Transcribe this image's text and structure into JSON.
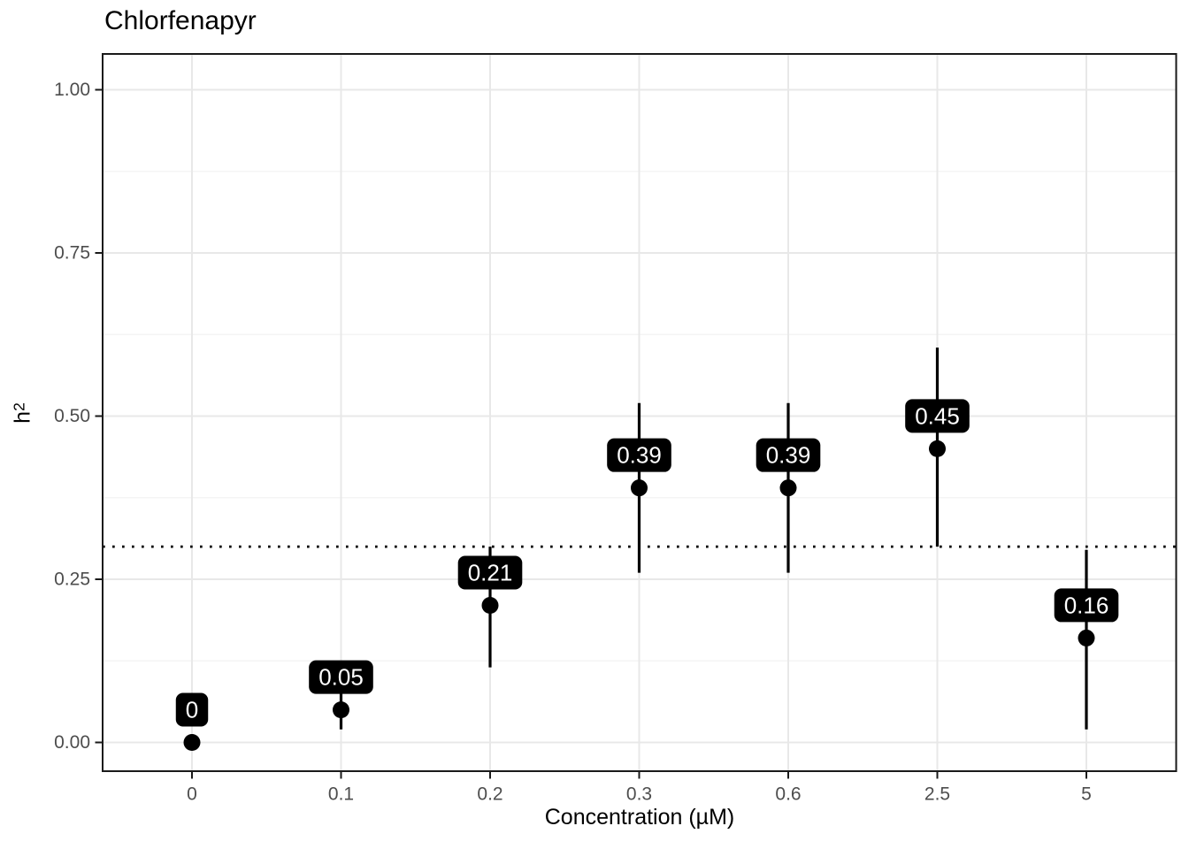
{
  "chart": {
    "title": "Chlorfenapyr",
    "x_axis_label": "Concentration (µM)",
    "y_axis_label_base": "h",
    "y_axis_label_sup": "2"
  },
  "chart_data": {
    "type": "pointrange",
    "title": "Chlorfenapyr",
    "xlabel": "Concentration (µM)",
    "ylabel": "h^2",
    "categories": [
      "0",
      "0.1",
      "0.2",
      "0.3",
      "0.6",
      "2.5",
      "5"
    ],
    "values": [
      0,
      0.05,
      0.21,
      0.39,
      0.39,
      0.45,
      0.16
    ],
    "point_labels": [
      "0",
      "0.05",
      "0.21",
      "0.39",
      "0.39",
      "0.45",
      "0.16"
    ],
    "error_low": [
      0,
      0.02,
      0.115,
      0.26,
      0.26,
      0.3,
      0.02
    ],
    "error_high": [
      0,
      0.08,
      0.3,
      0.52,
      0.52,
      0.605,
      0.295
    ],
    "reference_line": {
      "y": 0.3,
      "style": "dotted",
      "color": "#000000"
    },
    "y_ticks": [
      "0.00",
      "0.25",
      "0.50",
      "0.75",
      "1.00"
    ],
    "y_tick_values": [
      0,
      0.25,
      0.5,
      0.75,
      1.0
    ],
    "y_minor_gridlines": [
      0.125,
      0.375,
      0.625,
      0.875
    ],
    "ylim": [
      -0.044,
      1.055
    ],
    "grid": true,
    "legend": false,
    "colors": {
      "point": "#000000",
      "errorbar": "#000000",
      "label_fill": "#000000",
      "label_text": "#ffffff",
      "grid_major": "#e8e8e8",
      "grid_minor": "#f2f2f2",
      "panel_border": "#1a1a1a",
      "tick_mark": "#1a1a1a",
      "tick_text": "#4d4d4d",
      "background": "#ffffff"
    }
  }
}
